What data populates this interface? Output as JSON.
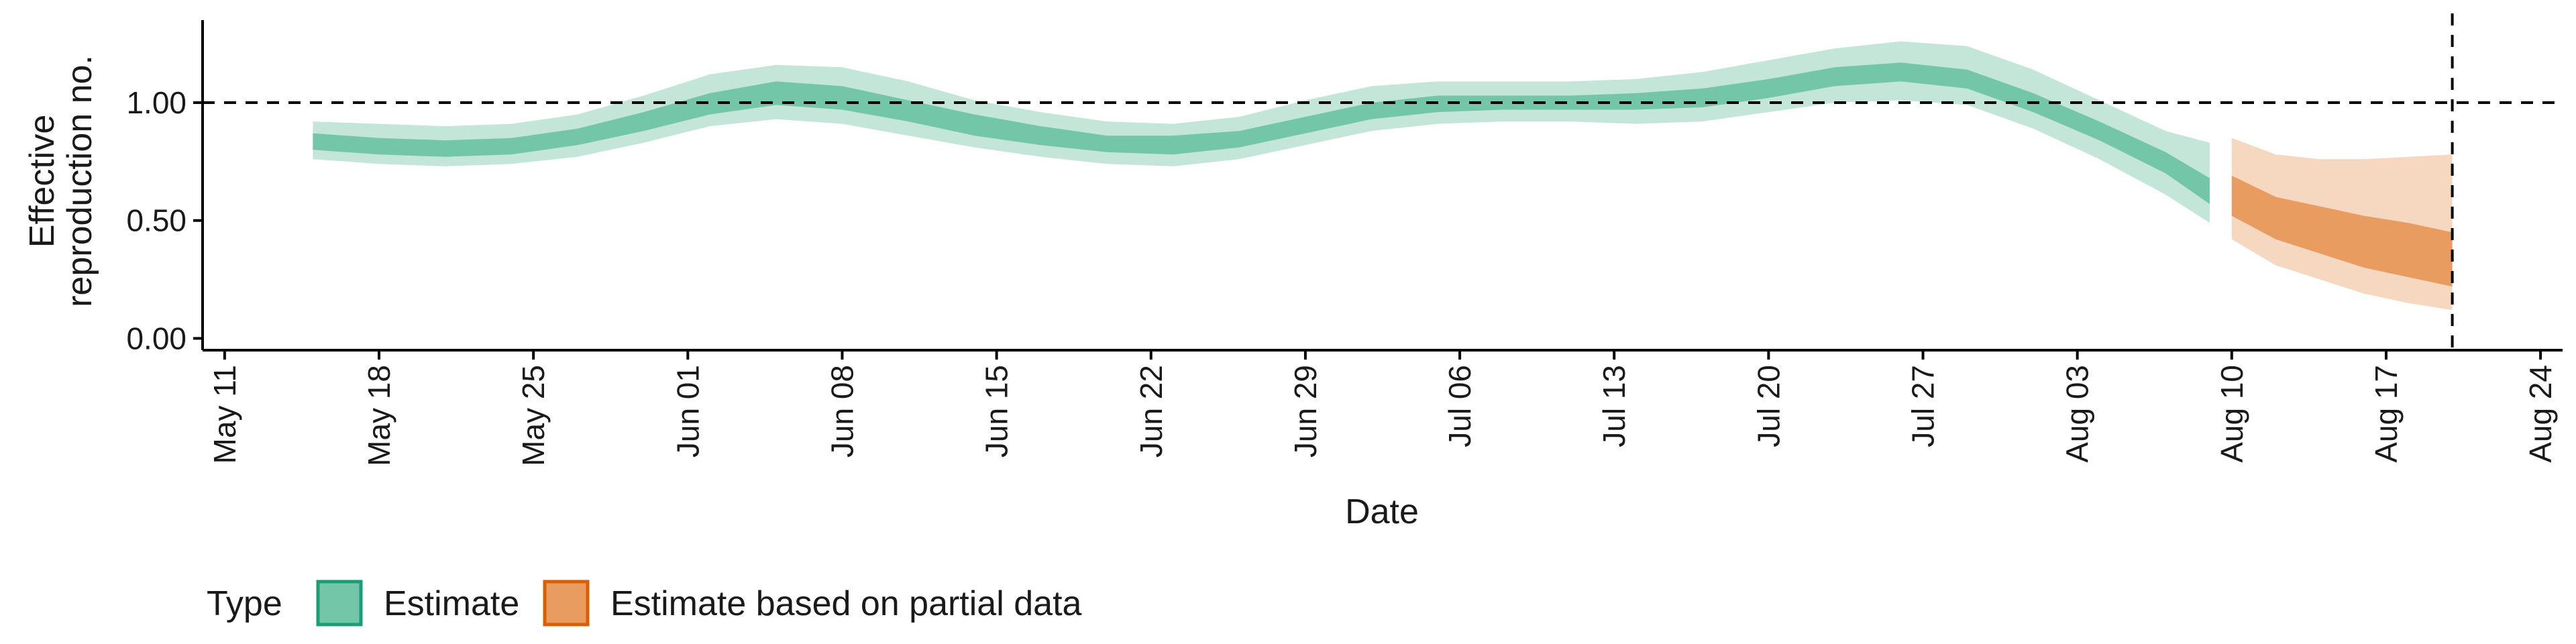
{
  "chart_data": {
    "type": "area",
    "xlabel": "Date",
    "ylabel_lines": [
      "Effective",
      "reproduction no."
    ],
    "ylim": [
      -0.05,
      1.35
    ],
    "y_ticks": [
      0.0,
      0.5,
      1.0
    ],
    "y_tick_labels": [
      "0.00",
      "0.50",
      "1.00"
    ],
    "xlim": [
      "2020-05-10",
      "2020-08-25"
    ],
    "x_ticks": [
      "2020-05-11",
      "2020-05-18",
      "2020-05-25",
      "2020-06-01",
      "2020-06-08",
      "2020-06-15",
      "2020-06-22",
      "2020-06-29",
      "2020-07-06",
      "2020-07-13",
      "2020-07-20",
      "2020-07-27",
      "2020-08-03",
      "2020-08-10",
      "2020-08-17",
      "2020-08-24"
    ],
    "x_tick_labels": [
      "May 11",
      "May 18",
      "May 25",
      "Jun 01",
      "Jun 08",
      "Jun 15",
      "Jun 22",
      "Jun 29",
      "Jul 06",
      "Jul 13",
      "Jul 20",
      "Jul 27",
      "Aug 03",
      "Aug 10",
      "Aug 17",
      "Aug 24"
    ],
    "reference_lines": {
      "horizontal_y": 1.0,
      "vertical_date": "2020-08-20"
    },
    "legend": {
      "title": "Type",
      "position": "bottom-left"
    },
    "series": [
      {
        "name": "Estimate",
        "color": "#1b9e77",
        "fill_inner": "#73c6a7",
        "fill_outer": "#c3e6d8",
        "x": [
          "2020-05-15",
          "2020-05-18",
          "2020-05-21",
          "2020-05-24",
          "2020-05-27",
          "2020-05-30",
          "2020-06-02",
          "2020-06-05",
          "2020-06-08",
          "2020-06-11",
          "2020-06-14",
          "2020-06-17",
          "2020-06-20",
          "2020-06-23",
          "2020-06-26",
          "2020-06-29",
          "2020-07-02",
          "2020-07-05",
          "2020-07-08",
          "2020-07-11",
          "2020-07-14",
          "2020-07-17",
          "2020-07-20",
          "2020-07-23",
          "2020-07-26",
          "2020-07-29",
          "2020-08-01",
          "2020-08-04",
          "2020-08-07",
          "2020-08-09"
        ],
        "y_outer_low": [
          0.76,
          0.74,
          0.73,
          0.74,
          0.77,
          0.83,
          0.9,
          0.93,
          0.91,
          0.86,
          0.81,
          0.77,
          0.74,
          0.73,
          0.76,
          0.82,
          0.88,
          0.91,
          0.92,
          0.92,
          0.91,
          0.92,
          0.96,
          1.0,
          1.01,
          0.99,
          0.89,
          0.76,
          0.61,
          0.49
        ],
        "y_50_low": [
          0.8,
          0.78,
          0.77,
          0.78,
          0.82,
          0.88,
          0.95,
          0.99,
          0.97,
          0.92,
          0.86,
          0.82,
          0.79,
          0.78,
          0.81,
          0.87,
          0.93,
          0.96,
          0.97,
          0.97,
          0.97,
          0.98,
          1.02,
          1.07,
          1.09,
          1.06,
          0.96,
          0.84,
          0.7,
          0.57
        ],
        "y_50_high": [
          0.87,
          0.85,
          0.84,
          0.85,
          0.89,
          0.96,
          1.04,
          1.09,
          1.07,
          1.01,
          0.95,
          0.9,
          0.86,
          0.86,
          0.88,
          0.94,
          1.0,
          1.03,
          1.03,
          1.03,
          1.04,
          1.06,
          1.1,
          1.15,
          1.17,
          1.14,
          1.04,
          0.92,
          0.79,
          0.68
        ],
        "y_outer_high": [
          0.92,
          0.91,
          0.9,
          0.91,
          0.95,
          1.03,
          1.12,
          1.16,
          1.15,
          1.09,
          1.01,
          0.96,
          0.92,
          0.91,
          0.94,
          1.01,
          1.07,
          1.09,
          1.09,
          1.09,
          1.1,
          1.13,
          1.18,
          1.23,
          1.26,
          1.24,
          1.14,
          1.01,
          0.88,
          0.83
        ]
      },
      {
        "name": "Estimate based on partial data",
        "color": "#d95f02",
        "fill_inner": "#e89c60",
        "fill_outer": "#f6d8c1",
        "x": [
          "2020-08-10",
          "2020-08-12",
          "2020-08-14",
          "2020-08-16",
          "2020-08-18",
          "2020-08-20"
        ],
        "y_outer_low": [
          0.42,
          0.31,
          0.25,
          0.19,
          0.15,
          0.12
        ],
        "y_50_low": [
          0.52,
          0.42,
          0.36,
          0.3,
          0.26,
          0.22
        ],
        "y_50_high": [
          0.69,
          0.6,
          0.56,
          0.52,
          0.49,
          0.45
        ],
        "y_outer_high": [
          0.85,
          0.78,
          0.76,
          0.76,
          0.77,
          0.78
        ]
      }
    ]
  }
}
